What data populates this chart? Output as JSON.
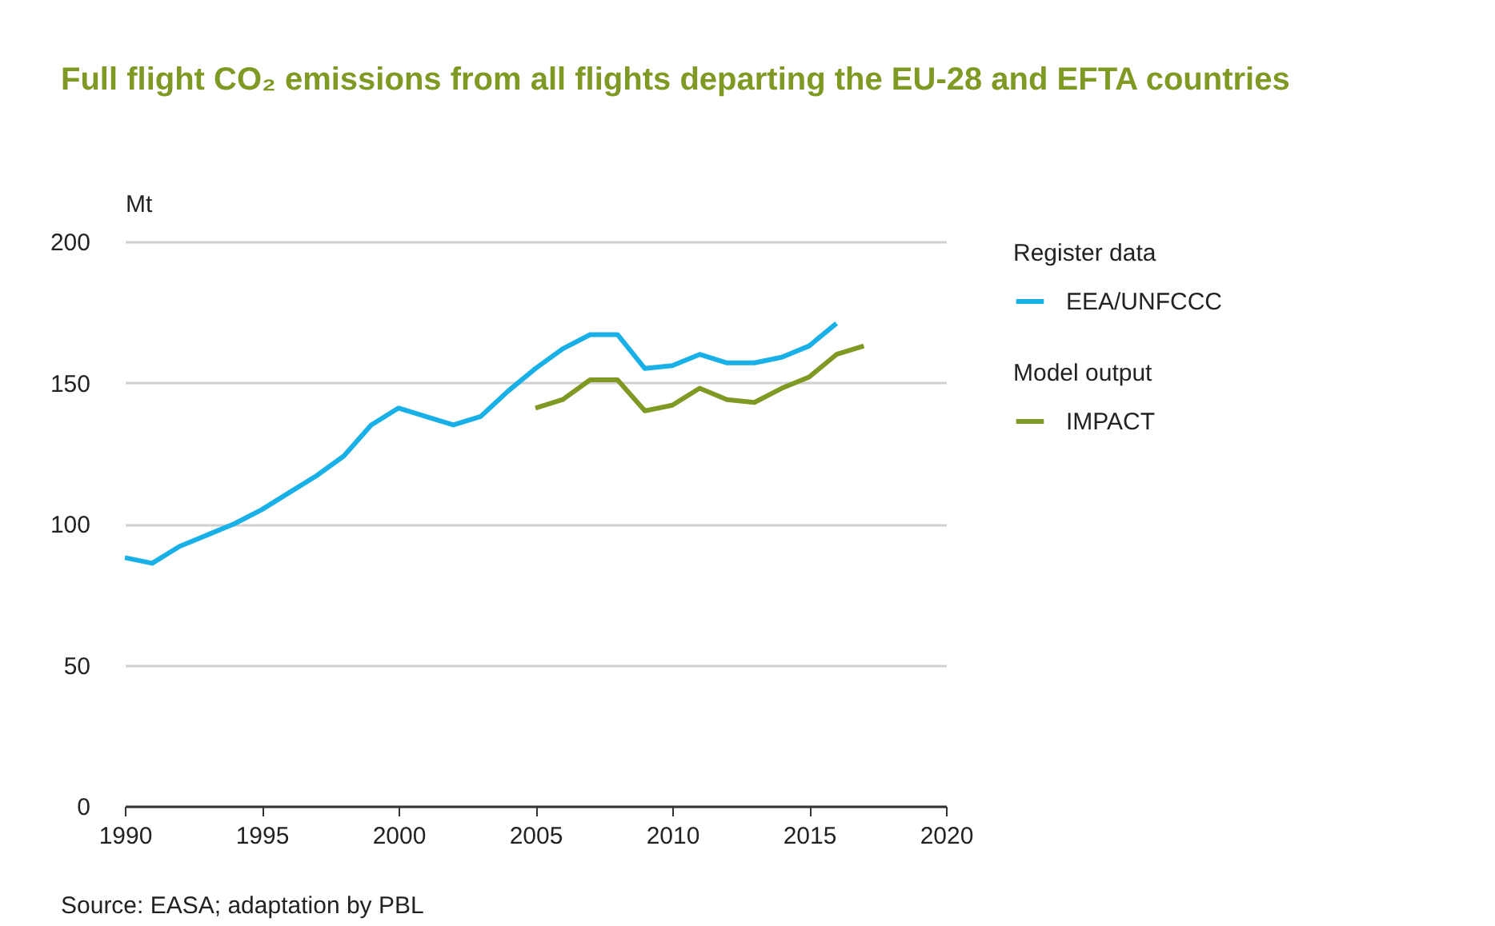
{
  "chart_data": {
    "type": "line",
    "title": "Full flight CO₂ emissions from all flights departing the EU-28 and EFTA countries",
    "ylabel": "Mt",
    "annotations": [
      "Register data",
      "Model output",
      "Source: EASA; adaptation by PBL"
    ],
    "series": [
      {
        "name": "EEA/UNFCCC",
        "color": "#19b0e8",
        "x": [
          1990,
          1991,
          1992,
          1993,
          1994,
          1995,
          1996,
          1997,
          1998,
          1999,
          2000,
          2001,
          2002,
          2003,
          2004,
          2005,
          2006,
          2007,
          2008,
          2009,
          2010,
          2011,
          2012,
          2013,
          2014,
          2015,
          2016
        ],
        "values": [
          88,
          86,
          92,
          96,
          100,
          105,
          111,
          117,
          124,
          135,
          141,
          138,
          135,
          138,
          147,
          155,
          162,
          167,
          167,
          155,
          156,
          160,
          157,
          157,
          159,
          163,
          171
        ]
      },
      {
        "name": "IMPACT",
        "color": "#7f9a24",
        "x": [
          2005,
          2006,
          2007,
          2008,
          2009,
          2010,
          2011,
          2012,
          2013,
          2014,
          2015,
          2016,
          2017
        ],
        "values": [
          141,
          144,
          151,
          151,
          140,
          142,
          148,
          144,
          143,
          148,
          152,
          160,
          163
        ]
      }
    ],
    "xlim": [
      1990,
      2020
    ],
    "xticks": [
      1990,
      1995,
      2000,
      2005,
      2010,
      2015,
      2020
    ],
    "ylim": [
      0,
      200
    ],
    "yticks": [
      0,
      50,
      100,
      150,
      200
    ],
    "grid": "y",
    "legend": "right",
    "line_style": "solid",
    "marker": "none"
  }
}
